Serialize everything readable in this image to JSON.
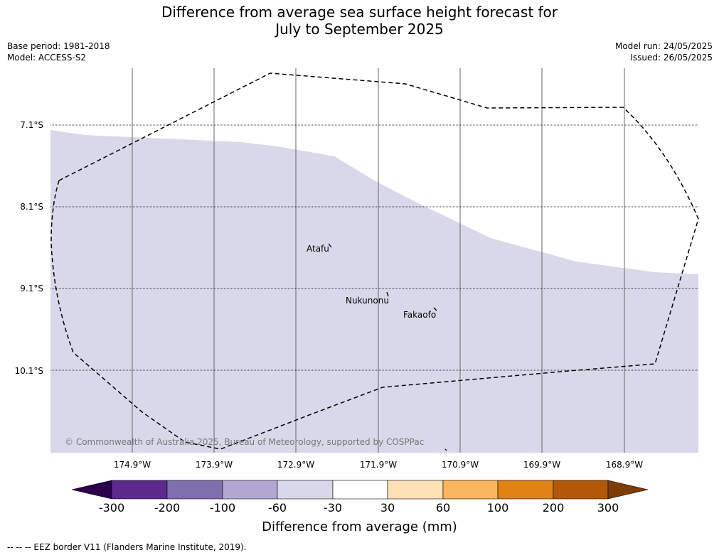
{
  "title_line1": "Difference from average sea surface height forecast for",
  "title_line2": "July to September 2025",
  "base_period": "Base period: 1981-2018",
  "model": "Model: ACCESS-S2",
  "model_run": "Model run: 24/05/2025",
  "issued": "Issued: 26/05/2025",
  "latitude_labels": [
    "7.1°S",
    "8.1°S",
    "9.1°S",
    "10.1°S"
  ],
  "longitude_labels": [
    "174.9°W",
    "173.9°W",
    "172.9°W",
    "171.9°W",
    "170.9°W",
    "169.9°W",
    "168.9°W"
  ],
  "places": [
    {
      "name": "Atafu"
    },
    {
      "name": "Nukunonu"
    },
    {
      "name": "Fakaofo"
    }
  ],
  "copyright": "© Commonwealth of Australia 2025, Bureau of Meteorology, supported by COSPPac",
  "colorbar": {
    "title": "Difference from average (mm)",
    "ticks": [
      "-300",
      "-200",
      "-100",
      "-60",
      "-30",
      "30",
      "60",
      "100",
      "200",
      "300"
    ],
    "colors": [
      "#5b2a8c",
      "#7f6fae",
      "#b0a8d3",
      "#d8d8ea",
      "#ffffff",
      "#fde0b4",
      "#fbb55c",
      "#e08214",
      "#b35806"
    ],
    "under_color": "#2d004b",
    "over_color": "#7f3b08"
  },
  "map_fill_color": "#d8d8ea",
  "eez_legend": "--  --  -- EEZ border V11 (Flanders Marine Institute, 2019)."
}
